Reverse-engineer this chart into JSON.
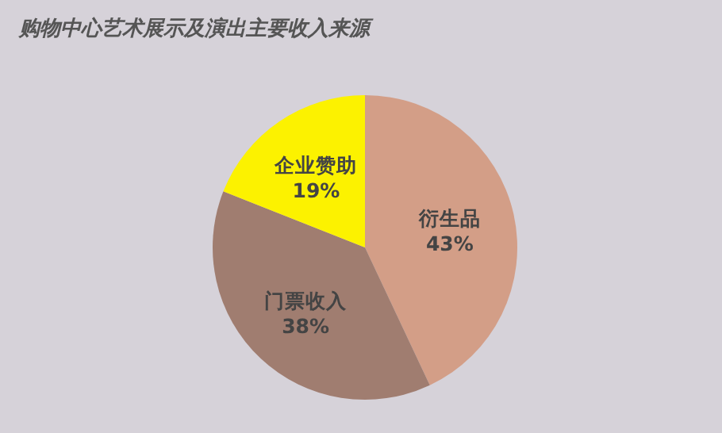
{
  "chart_data": {
    "type": "pie",
    "title": "购物中心艺术展示及演出主要收入来源",
    "categories": [
      "衍生品",
      "门票收入",
      "企业赞助"
    ],
    "values": [
      43,
      38,
      19
    ],
    "value_labels": [
      "43%",
      "38%",
      "19%"
    ],
    "colors": [
      "#d39e87",
      "#a07d70",
      "#fcf200"
    ],
    "legend": false
  }
}
